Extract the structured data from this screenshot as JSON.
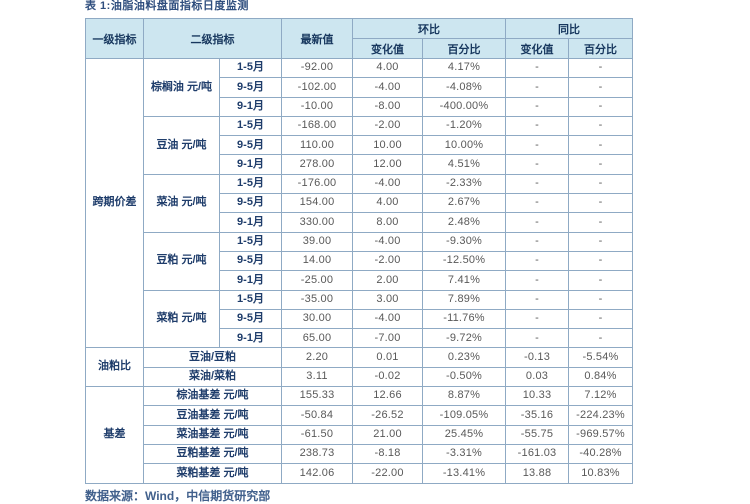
{
  "page": {
    "title": "表 1:油脂油料盘面指标日度监测",
    "source": "数据来源：Wind，中信期货研究部"
  },
  "colors": {
    "header_bg": "#CDE6F0",
    "header_text": "#17375E",
    "border": "#8FAAC4",
    "label_text": "#1F3D6B",
    "value_text": "#595959"
  },
  "table": {
    "headers": {
      "level1": "一级指标",
      "level2": "二级指标",
      "latest": "最新值",
      "mom": "环比",
      "yoy": "同比",
      "change": "变化值",
      "pct": "百分比"
    },
    "sections": [
      {
        "name": "跨期价差",
        "groups": [
          {
            "label": "棕榈油 元/吨",
            "rows": [
              {
                "period": "1-5月",
                "latest": "-92.00",
                "mom_change": "4.00",
                "mom_pct": "4.17%",
                "yoy_change": "-",
                "yoy_pct": "-"
              },
              {
                "period": "9-5月",
                "latest": "-102.00",
                "mom_change": "-4.00",
                "mom_pct": "-4.08%",
                "yoy_change": "-",
                "yoy_pct": "-"
              },
              {
                "period": "9-1月",
                "latest": "-10.00",
                "mom_change": "-8.00",
                "mom_pct": "-400.00%",
                "yoy_change": "-",
                "yoy_pct": "-"
              }
            ]
          },
          {
            "label": "豆油 元/吨",
            "rows": [
              {
                "period": "1-5月",
                "latest": "-168.00",
                "mom_change": "-2.00",
                "mom_pct": "-1.20%",
                "yoy_change": "-",
                "yoy_pct": "-"
              },
              {
                "period": "9-5月",
                "latest": "110.00",
                "mom_change": "10.00",
                "mom_pct": "10.00%",
                "yoy_change": "-",
                "yoy_pct": "-"
              },
              {
                "period": "9-1月",
                "latest": "278.00",
                "mom_change": "12.00",
                "mom_pct": "4.51%",
                "yoy_change": "-",
                "yoy_pct": "-"
              }
            ]
          },
          {
            "label": "菜油 元/吨",
            "rows": [
              {
                "period": "1-5月",
                "latest": "-176.00",
                "mom_change": "-4.00",
                "mom_pct": "-2.33%",
                "yoy_change": "-",
                "yoy_pct": "-"
              },
              {
                "period": "9-5月",
                "latest": "154.00",
                "mom_change": "4.00",
                "mom_pct": "2.67%",
                "yoy_change": "-",
                "yoy_pct": "-"
              },
              {
                "period": "9-1月",
                "latest": "330.00",
                "mom_change": "8.00",
                "mom_pct": "2.48%",
                "yoy_change": "-",
                "yoy_pct": "-"
              }
            ]
          },
          {
            "label": "豆粕 元/吨",
            "rows": [
              {
                "period": "1-5月",
                "latest": "39.00",
                "mom_change": "-4.00",
                "mom_pct": "-9.30%",
                "yoy_change": "-",
                "yoy_pct": "-"
              },
              {
                "period": "9-5月",
                "latest": "14.00",
                "mom_change": "-2.00",
                "mom_pct": "-12.50%",
                "yoy_change": "-",
                "yoy_pct": "-"
              },
              {
                "period": "9-1月",
                "latest": "-25.00",
                "mom_change": "2.00",
                "mom_pct": "7.41%",
                "yoy_change": "-",
                "yoy_pct": "-"
              }
            ]
          },
          {
            "label": "菜粕 元/吨",
            "rows": [
              {
                "period": "1-5月",
                "latest": "-35.00",
                "mom_change": "3.00",
                "mom_pct": "7.89%",
                "yoy_change": "-",
                "yoy_pct": "-"
              },
              {
                "period": "9-5月",
                "latest": "30.00",
                "mom_change": "-4.00",
                "mom_pct": "-11.76%",
                "yoy_change": "-",
                "yoy_pct": "-"
              },
              {
                "period": "9-1月",
                "latest": "65.00",
                "mom_change": "-7.00",
                "mom_pct": "-9.72%",
                "yoy_change": "-",
                "yoy_pct": "-"
              }
            ]
          }
        ]
      },
      {
        "name": "油粕比",
        "groups": [
          {
            "label": "豆油/豆粕",
            "span2": true,
            "rows": [
              {
                "latest": "2.20",
                "mom_change": "0.01",
                "mom_pct": "0.23%",
                "yoy_change": "-0.13",
                "yoy_pct": "-5.54%"
              }
            ]
          },
          {
            "label": "菜油/菜粕",
            "span2": true,
            "rows": [
              {
                "latest": "3.11",
                "mom_change": "-0.02",
                "mom_pct": "-0.50%",
                "yoy_change": "0.03",
                "yoy_pct": "0.84%"
              }
            ]
          }
        ]
      },
      {
        "name": "基差",
        "groups": [
          {
            "label": "棕油基差 元/吨",
            "span2": true,
            "rows": [
              {
                "latest": "155.33",
                "mom_change": "12.66",
                "mom_pct": "8.87%",
                "yoy_change": "10.33",
                "yoy_pct": "7.12%"
              }
            ]
          },
          {
            "label": "豆油基差 元/吨",
            "span2": true,
            "rows": [
              {
                "latest": "-50.84",
                "mom_change": "-26.52",
                "mom_pct": "-109.05%",
                "yoy_change": "-35.16",
                "yoy_pct": "-224.23%"
              }
            ]
          },
          {
            "label": "菜油基差 元/吨",
            "span2": true,
            "rows": [
              {
                "latest": "-61.50",
                "mom_change": "21.00",
                "mom_pct": "25.45%",
                "yoy_change": "-55.75",
                "yoy_pct": "-969.57%"
              }
            ]
          },
          {
            "label": "豆粕基差 元/吨",
            "span2": true,
            "rows": [
              {
                "latest": "238.73",
                "mom_change": "-8.18",
                "mom_pct": "-3.31%",
                "yoy_change": "-161.03",
                "yoy_pct": "-40.28%"
              }
            ]
          },
          {
            "label": "菜粕基差 元/吨",
            "span2": true,
            "rows": [
              {
                "latest": "142.06",
                "mom_change": "-22.00",
                "mom_pct": "-13.41%",
                "yoy_change": "13.88",
                "yoy_pct": "10.83%"
              }
            ]
          }
        ]
      }
    ]
  }
}
